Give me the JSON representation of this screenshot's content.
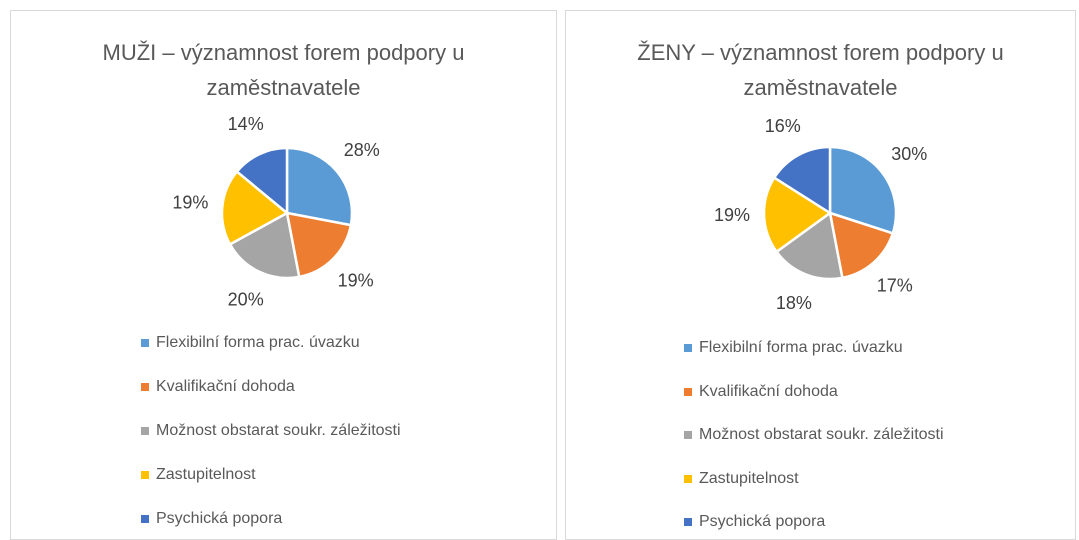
{
  "chart_data": [
    {
      "type": "pie",
      "title": "MUŽI – významnost forem podpory u zaměstnavatele",
      "categories": [
        "Flexibilní forma prac. úvazku",
        "Kvalifikační dohoda",
        "Možnost obstarat soukr. záležitosti",
        "Zastupitelnost",
        "Psychická popora"
      ],
      "values": [
        28,
        19,
        20,
        19,
        14
      ],
      "value_labels": [
        "28%",
        "19%",
        "20%",
        "19%",
        "14%"
      ],
      "colors": [
        "#5b9bd5",
        "#ed7d31",
        "#a5a5a5",
        "#ffc000",
        "#4472c4"
      ]
    },
    {
      "type": "pie",
      "title": "ŽENY – významnost forem podpory u zaměstnavatele",
      "categories": [
        "Flexibilní forma prac. úvazku",
        "Kvalifikační dohoda",
        "Možnost obstarat soukr. záležitosti",
        "Zastupitelnost",
        "Psychická popora"
      ],
      "values": [
        30,
        17,
        18,
        19,
        16
      ],
      "value_labels": [
        "30%",
        "17%",
        "18%",
        "19%",
        "16%"
      ],
      "colors": [
        "#5b9bd5",
        "#ed7d31",
        "#a5a5a5",
        "#ffc000",
        "#4472c4"
      ]
    }
  ]
}
